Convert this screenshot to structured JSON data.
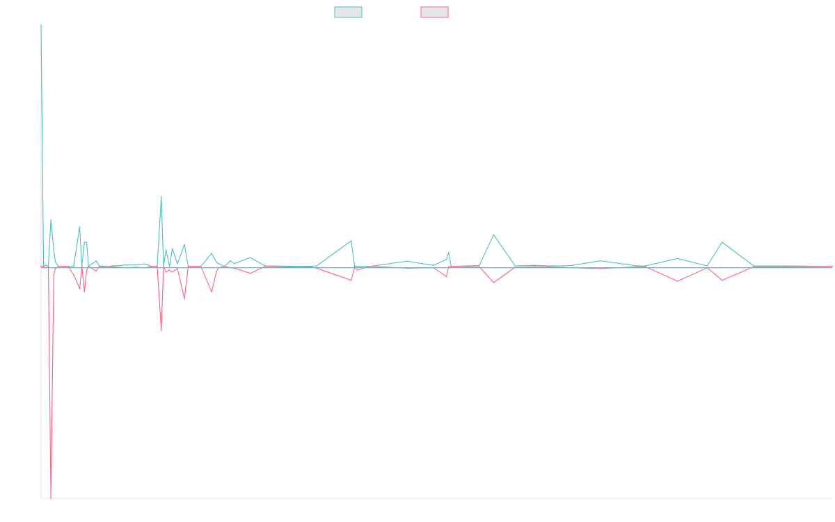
{
  "chart_data": {
    "type": "line",
    "title": "",
    "xlabel": "",
    "ylabel": "",
    "grid": false,
    "legend_position": "top-center",
    "xlim": [
      0,
      250
    ],
    "ylim": [
      -0.5,
      0.52
    ],
    "series": [
      {
        "color": "#4bc0c0",
        "fill": "#e6e6e6",
        "points": [
          [
            0,
            0.52
          ],
          [
            0.8,
            0
          ],
          [
            1.5,
            0.003
          ],
          [
            2.3,
            0
          ],
          [
            3.1,
            0.1
          ],
          [
            4.0,
            0.036
          ],
          [
            4.5,
            0.01
          ],
          [
            5.5,
            0
          ],
          [
            7,
            0
          ],
          [
            8.5,
            0
          ],
          [
            10.3,
            0
          ],
          [
            12.2,
            0.085
          ],
          [
            12.9,
            0
          ],
          [
            13.7,
            0.052
          ],
          [
            14.4,
            0.052
          ],
          [
            15.0,
            0
          ],
          [
            17.4,
            0.012
          ],
          [
            18.5,
            0
          ],
          [
            19.3,
            0.001
          ],
          [
            20.6,
            0
          ],
          [
            27.1,
            0.003
          ],
          [
            30.0,
            0.003
          ],
          [
            32.5,
            0.005
          ],
          [
            33.8,
            0.003
          ],
          [
            35,
            0
          ],
          [
            36.7,
            0
          ],
          [
            38.0,
            0.15
          ],
          [
            38.7,
            0.001
          ],
          [
            39.5,
            0.035
          ],
          [
            40.6,
            0
          ],
          [
            41.5,
            0.038
          ],
          [
            43.1,
            0.006
          ],
          [
            45.3,
            0.047
          ],
          [
            46.5,
            0
          ],
          [
            48.6,
            0
          ],
          [
            50.5,
            0
          ],
          [
            53.9,
            0.028
          ],
          [
            55.4,
            0.009
          ],
          [
            56.1,
            0.006
          ],
          [
            58.0,
            0
          ],
          [
            59.8,
            0.012
          ],
          [
            61.1,
            0.006
          ],
          [
            66.1,
            0.019
          ],
          [
            70.8,
            0.001
          ],
          [
            82.8,
            0
          ],
          [
            84.9,
            0
          ],
          [
            87.1,
            0.001
          ],
          [
            98.0,
            0.055
          ],
          [
            99.1,
            0
          ],
          [
            100,
            0
          ],
          [
            104,
            0
          ],
          [
            115.7,
            0.011
          ],
          [
            124.0,
            0.002
          ],
          [
            128.1,
            0.015
          ],
          [
            128.8,
            0.03
          ],
          [
            129.6,
            0
          ],
          [
            130.5,
            0
          ],
          [
            138.5,
            0.002
          ],
          [
            143.0,
            0.068
          ],
          [
            149.8,
            0.001
          ],
          [
            156.0,
            0.002
          ],
          [
            160.4,
            0.001
          ],
          [
            164.9,
            0.001
          ],
          [
            167.9,
            0.002
          ],
          [
            176.7,
            0.012
          ],
          [
            188.3,
            0.001
          ],
          [
            191.0,
            0.001
          ],
          [
            201.1,
            0.017
          ],
          [
            210.5,
            0.001
          ],
          [
            215.2,
            0.052
          ],
          [
            225.2,
            0.001
          ],
          [
            235.0,
            0.001
          ],
          [
            250,
            0
          ]
        ]
      },
      {
        "color": "#ff6384",
        "fill": "#e6e6e6",
        "points": [
          [
            0,
            0
          ],
          [
            0.8,
            0
          ],
          [
            1.5,
            -0.003
          ],
          [
            2.3,
            0
          ],
          [
            3.1,
            -0.5
          ],
          [
            4.0,
            -0.018
          ],
          [
            4.5,
            -0.005
          ],
          [
            5.5,
            0
          ],
          [
            7,
            0
          ],
          [
            8.5,
            0
          ],
          [
            10.3,
            -0.018
          ],
          [
            12.2,
            -0.048
          ],
          [
            12.9,
            0
          ],
          [
            13.7,
            -0.055
          ],
          [
            14.4,
            -0.008
          ],
          [
            15.0,
            0
          ],
          [
            17.4,
            -0.01
          ],
          [
            18.5,
            0
          ],
          [
            19.3,
            -0.002
          ],
          [
            20.6,
            0
          ],
          [
            27.1,
            -0.003
          ],
          [
            30.0,
            -0.002
          ],
          [
            32.5,
            -0.003
          ],
          [
            33.8,
            -0.002
          ],
          [
            35,
            0
          ],
          [
            36.7,
            0
          ],
          [
            38.0,
            -0.138
          ],
          [
            38.7,
            0
          ],
          [
            39.5,
            -0.012
          ],
          [
            40.6,
            -0.008
          ],
          [
            41.5,
            -0.012
          ],
          [
            43.1,
            -0.005
          ],
          [
            45.3,
            -0.07
          ],
          [
            46.5,
            0
          ],
          [
            48.6,
            0
          ],
          [
            50.5,
            0
          ],
          [
            53.9,
            -0.055
          ],
          [
            55.4,
            -0.012
          ],
          [
            56.1,
            -0.003
          ],
          [
            58.0,
            0
          ],
          [
            59.8,
            -0.003
          ],
          [
            61.1,
            -0.004
          ],
          [
            66.1,
            -0.015
          ],
          [
            70.8,
            0
          ],
          [
            82.8,
            -0.002
          ],
          [
            84.9,
            -0.001
          ],
          [
            87.1,
            -0.004
          ],
          [
            98.0,
            -0.03
          ],
          [
            99.1,
            -0.002
          ],
          [
            100,
            -0.008
          ],
          [
            104,
            0
          ],
          [
            115.7,
            -0.004
          ],
          [
            124.0,
            -0.003
          ],
          [
            128.1,
            -0.022
          ],
          [
            128.8,
            -0.001
          ],
          [
            129.6,
            0
          ],
          [
            130.5,
            0
          ],
          [
            138.5,
            -0.001
          ],
          [
            143.0,
            -0.035
          ],
          [
            149.8,
            -0.002
          ],
          [
            156.0,
            -0.001
          ],
          [
            160.4,
            -0.001
          ],
          [
            164.9,
            -0.002
          ],
          [
            167.9,
            -0.003
          ],
          [
            176.7,
            -0.005
          ],
          [
            188.3,
            -0.001
          ],
          [
            191.0,
            -0.001
          ],
          [
            201.1,
            -0.032
          ],
          [
            210.5,
            -0.003
          ],
          [
            215.2,
            -0.03
          ],
          [
            225.2,
            -0.001
          ],
          [
            235.0,
            -0.001
          ],
          [
            250,
            0
          ]
        ]
      }
    ]
  }
}
